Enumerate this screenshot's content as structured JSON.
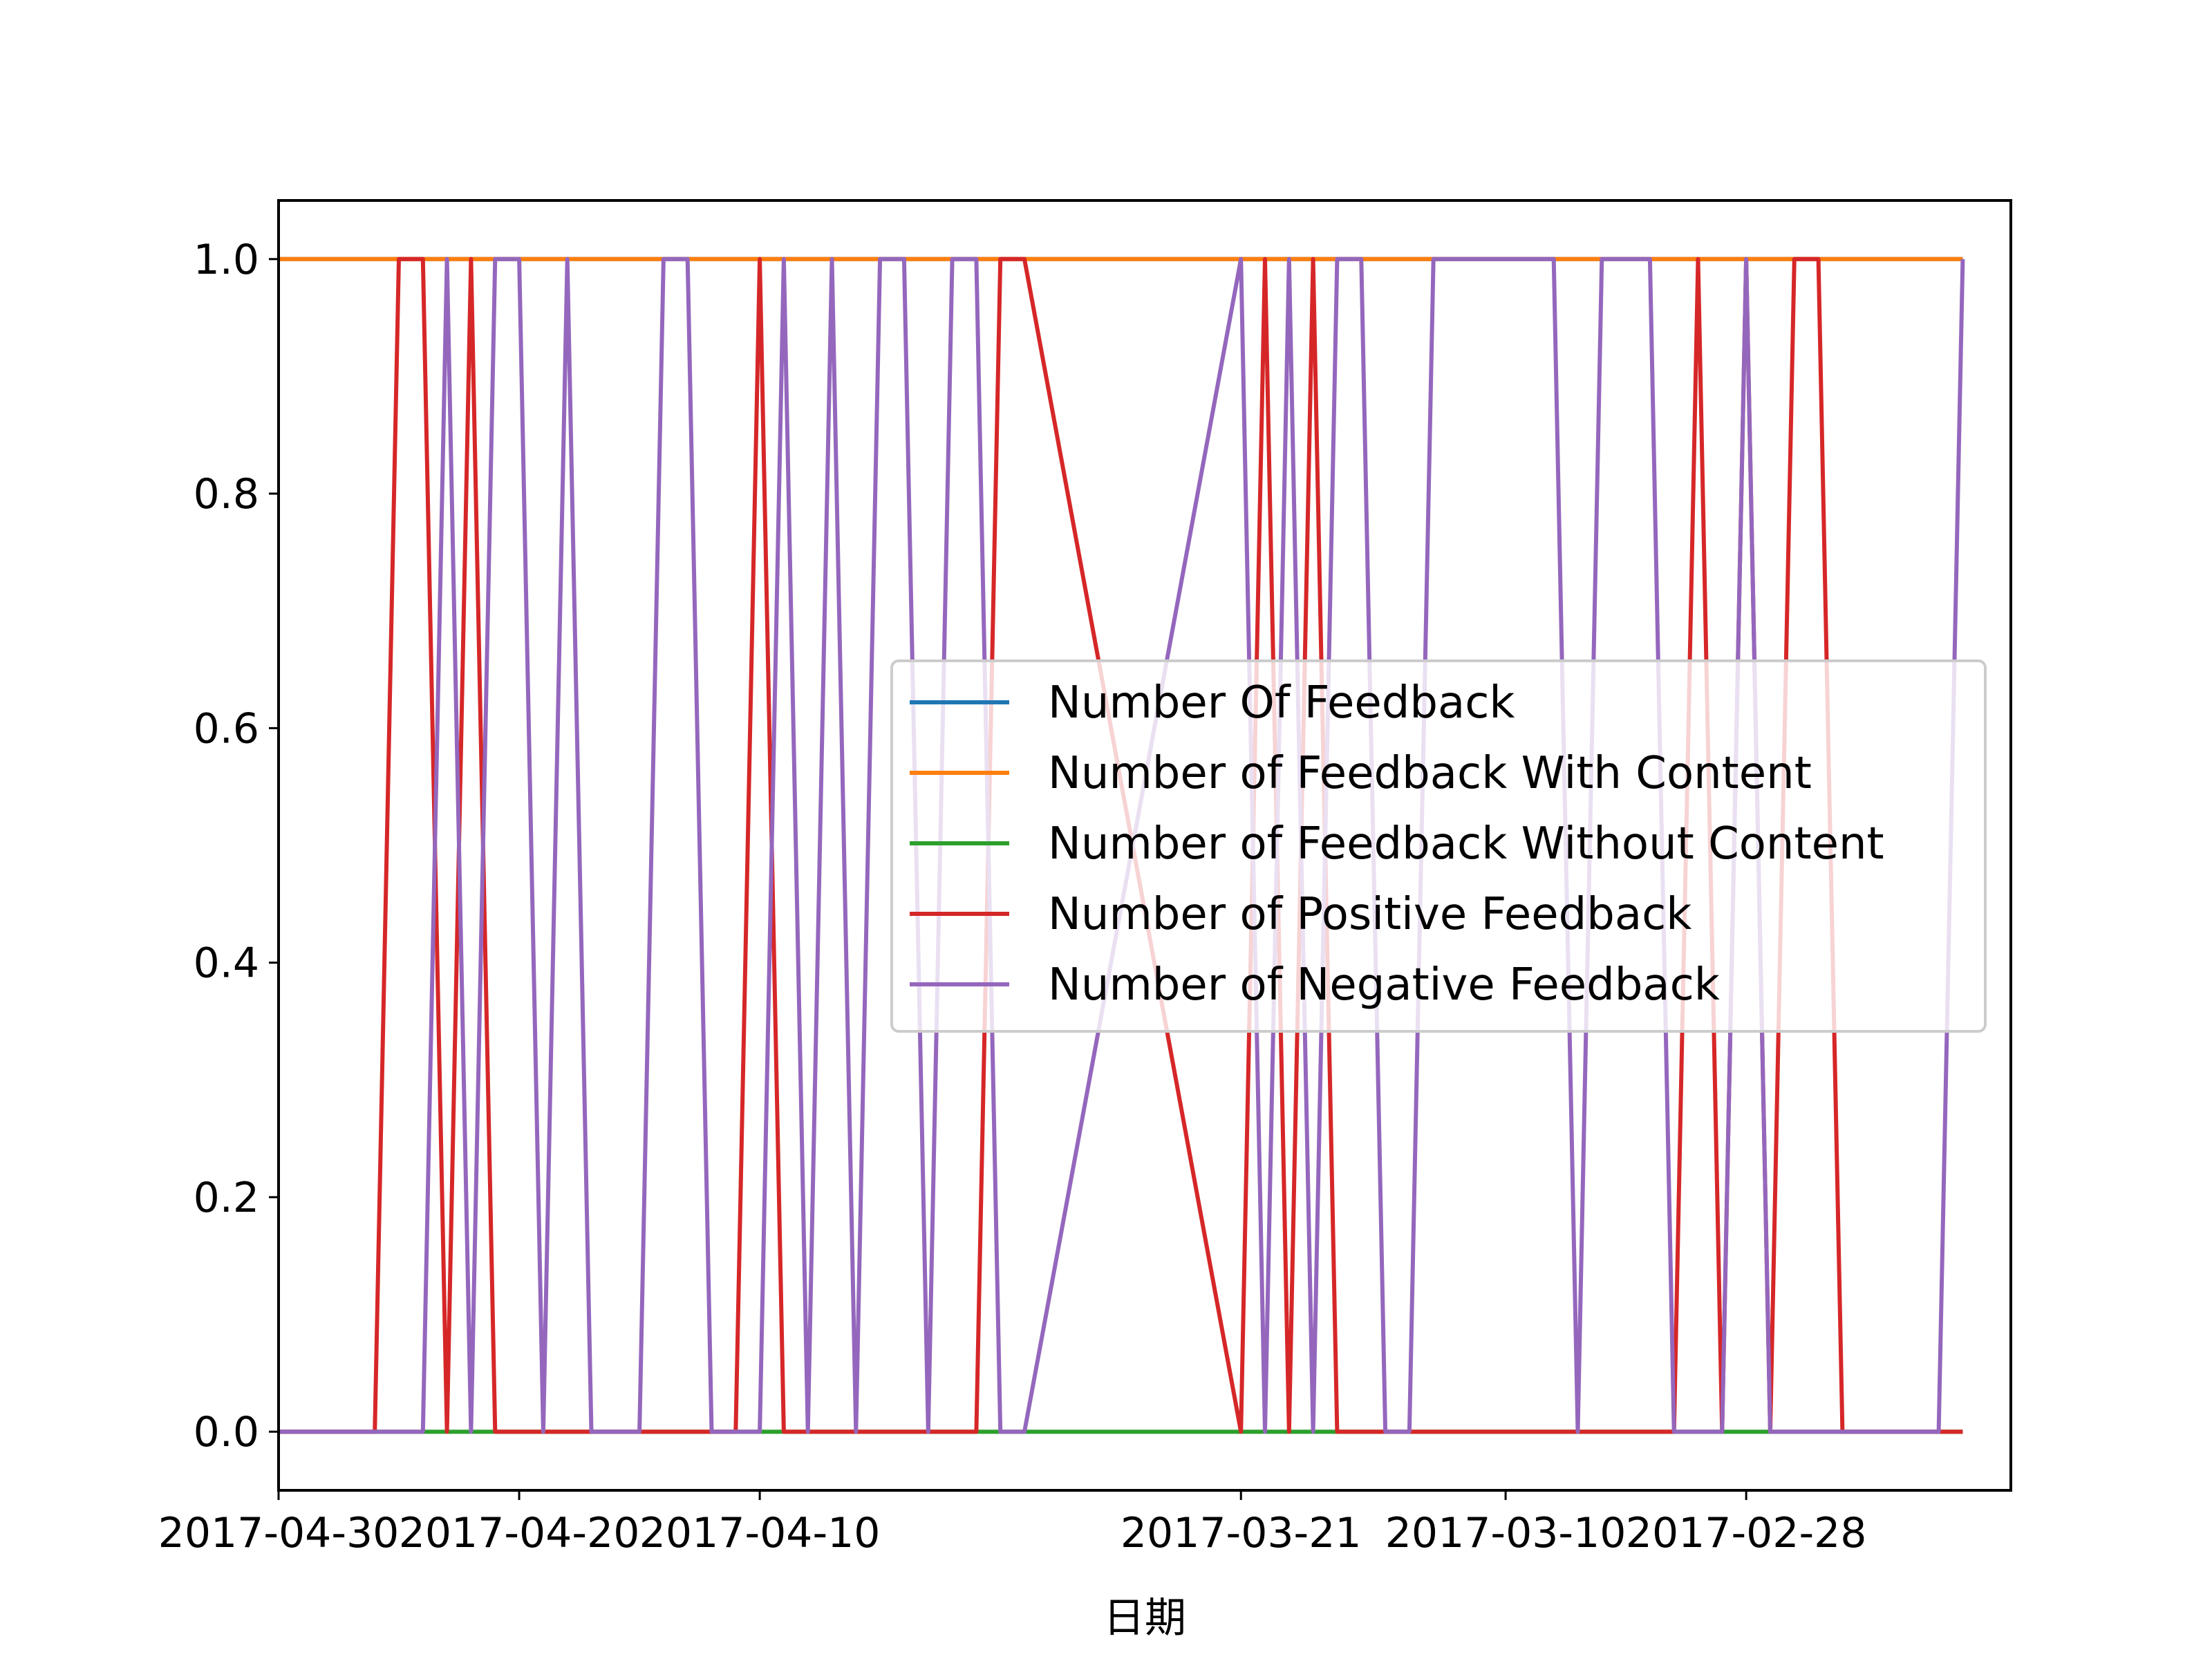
{
  "chart_data": {
    "type": "line",
    "title": "",
    "xlabel": "日期",
    "ylabel": "",
    "x_reversed": true,
    "xlim": [
      "2017-04-30",
      "2017-02-17"
    ],
    "ylim": [
      -0.05,
      1.05
    ],
    "x_ticks": [
      "2017-04-30",
      "2017-04-20",
      "2017-04-10",
      "2017-03-21",
      "2017-03-10",
      "2017-02-28"
    ],
    "y_ticks": [
      "0.0",
      "0.2",
      "0.4",
      "0.6",
      "0.8",
      "1.0"
    ],
    "grid": false,
    "legend_position": "center-right",
    "x": [
      "2017-04-30",
      "2017-04-29",
      "2017-04-28",
      "2017-04-27",
      "2017-04-26",
      "2017-04-25",
      "2017-04-24",
      "2017-04-23",
      "2017-04-22",
      "2017-04-21",
      "2017-04-20",
      "2017-04-19",
      "2017-04-18",
      "2017-04-17",
      "2017-04-16",
      "2017-04-15",
      "2017-04-14",
      "2017-04-13",
      "2017-04-12",
      "2017-04-11",
      "2017-04-10",
      "2017-04-09",
      "2017-04-08",
      "2017-04-07",
      "2017-04-06",
      "2017-04-05",
      "2017-04-04",
      "2017-04-03",
      "2017-04-02",
      "2017-04-01",
      "2017-03-31",
      "2017-03-30",
      "2017-03-21",
      "2017-03-20",
      "2017-03-19",
      "2017-03-18",
      "2017-03-17",
      "2017-03-16",
      "2017-03-15",
      "2017-03-14",
      "2017-03-13",
      "2017-03-12",
      "2017-03-10",
      "2017-03-09",
      "2017-03-08",
      "2017-03-07",
      "2017-03-06",
      "2017-03-05",
      "2017-03-04",
      "2017-03-03",
      "2017-03-02",
      "2017-03-01",
      "2017-02-28",
      "2017-02-27",
      "2017-02-26",
      "2017-02-25",
      "2017-02-24",
      "2017-02-23",
      "2017-02-22",
      "2017-02-21",
      "2017-02-20",
      "2017-02-19"
    ],
    "series": [
      {
        "name": "Number Of Feedback",
        "color": "#1f77b4",
        "values": [
          1,
          1,
          1,
          1,
          1,
          1,
          1,
          1,
          1,
          1,
          1,
          1,
          1,
          1,
          1,
          1,
          1,
          1,
          1,
          1,
          1,
          1,
          1,
          1,
          1,
          1,
          1,
          1,
          1,
          1,
          1,
          1,
          1,
          1,
          1,
          1,
          1,
          1,
          1,
          1,
          1,
          1,
          1,
          1,
          1,
          1,
          1,
          1,
          1,
          1,
          1,
          1,
          1,
          1,
          1,
          1,
          1,
          1,
          1,
          1,
          1,
          1
        ]
      },
      {
        "name": "Number of Feedback With Content",
        "color": "#ff7f0e",
        "values": [
          1,
          1,
          1,
          1,
          1,
          1,
          1,
          1,
          1,
          1,
          1,
          1,
          1,
          1,
          1,
          1,
          1,
          1,
          1,
          1,
          1,
          1,
          1,
          1,
          1,
          1,
          1,
          1,
          1,
          1,
          1,
          1,
          1,
          1,
          1,
          1,
          1,
          1,
          1,
          1,
          1,
          1,
          1,
          1,
          1,
          1,
          1,
          1,
          1,
          1,
          1,
          1,
          1,
          1,
          1,
          1,
          1,
          1,
          1,
          1,
          1,
          1
        ]
      },
      {
        "name": "Number of Feedback Without Content",
        "color": "#2ca02c",
        "values": [
          0,
          0,
          0,
          0,
          0,
          0,
          0,
          0,
          0,
          0,
          0,
          0,
          0,
          0,
          0,
          0,
          0,
          0,
          0,
          0,
          0,
          0,
          0,
          0,
          0,
          0,
          0,
          0,
          0,
          0,
          0,
          0,
          0,
          0,
          0,
          0,
          0,
          0,
          0,
          0,
          0,
          0,
          0,
          0,
          0,
          0,
          0,
          0,
          0,
          0,
          0,
          0,
          0,
          0,
          0,
          0,
          0,
          0,
          0,
          0,
          0,
          0
        ]
      },
      {
        "name": "Number of Positive Feedback",
        "color": "#d62728",
        "values": [
          0,
          0,
          0,
          0,
          0,
          1,
          1,
          0,
          1,
          0,
          0,
          0,
          0,
          0,
          0,
          0,
          0,
          0,
          0,
          0,
          1,
          0,
          0,
          0,
          0,
          0,
          0,
          0,
          0,
          0,
          1,
          1,
          0,
          1,
          0,
          1,
          0,
          0,
          0,
          0,
          0,
          0,
          0,
          0,
          0,
          0,
          0,
          0,
          0,
          0,
          1,
          0,
          1,
          0,
          1,
          1,
          0,
          0,
          0,
          0,
          0,
          0
        ]
      },
      {
        "name": "Number of Negative Feedback",
        "color": "#9467bd",
        "values": [
          0,
          0,
          0,
          0,
          0,
          0,
          0,
          1,
          0,
          1,
          1,
          0,
          1,
          0,
          0,
          0,
          1,
          1,
          0,
          0,
          0,
          1,
          0,
          1,
          0,
          1,
          1,
          0,
          1,
          1,
          0,
          0,
          1,
          0,
          1,
          0,
          1,
          1,
          0,
          0,
          1,
          1,
          1,
          1,
          1,
          0,
          1,
          1,
          1,
          0,
          0,
          0,
          1,
          0,
          0,
          0,
          0,
          0,
          0,
          0,
          0,
          1
        ]
      }
    ]
  }
}
